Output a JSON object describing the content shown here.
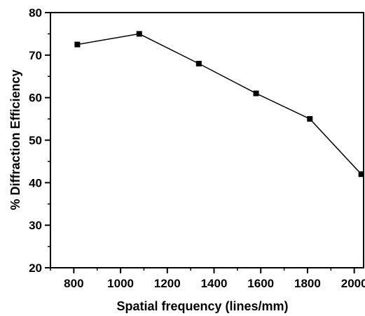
{
  "chart_data": {
    "type": "line",
    "xlabel": "Spatial frequency (lines/mm)",
    "ylabel": "% Diffraction Efficiency",
    "xlim": [
      700,
      2040
    ],
    "ylim": [
      20,
      80
    ],
    "xticks": [
      800,
      1000,
      1200,
      1400,
      1600,
      1800,
      2000
    ],
    "yticks": [
      20,
      30,
      40,
      50,
      60,
      70,
      80
    ],
    "xtick_labels": [
      "800",
      "1000",
      "1200",
      "1400",
      "1600",
      "1800",
      "2000"
    ],
    "ytick_labels": [
      "20",
      "30",
      "40",
      "50",
      "60",
      "70",
      "80"
    ],
    "grid": false,
    "legend": "none",
    "series": [
      {
        "x": [
          815,
          1080,
          1335,
          1580,
          1810,
          2030
        ],
        "y": [
          72.5,
          75,
          68,
          61,
          55,
          42
        ],
        "marker": "square",
        "color": "#000000"
      }
    ]
  }
}
